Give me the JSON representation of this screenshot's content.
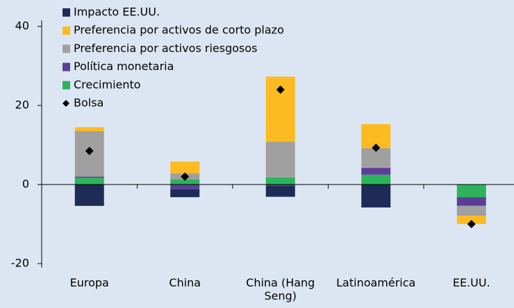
{
  "chart_data": {
    "type": "stacked-bar",
    "categories": [
      "Europa",
      "China",
      "China (Hang Seng)",
      "Latinoamérica",
      "EE.UU."
    ],
    "series": [
      {
        "name": "Impacto EE.UU.",
        "color": "#1f2b57",
        "values": [
          -5.4,
          -2,
          -2.8,
          -5.8,
          0
        ]
      },
      {
        "name": "Preferencia por activos de corto plazo",
        "color": "#fdbb22",
        "values": [
          1,
          3,
          16.5,
          6.1,
          -2.1
        ]
      },
      {
        "name": "Preferencia por activos riesgosos",
        "color": "#a0a0a0",
        "values": [
          11.5,
          1.5,
          9,
          5,
          -2.5
        ]
      },
      {
        "name": "Política monetaria",
        "color": "#5b3d99",
        "values": [
          0.3,
          -1.2,
          -0.3,
          1.7,
          -2.2
        ]
      },
      {
        "name": "Crecimiento",
        "color": "#2bb45a",
        "values": [
          1.7,
          1.3,
          1.8,
          2.5,
          -3.2
        ]
      },
      {
        "name": "Bolsa",
        "color": "#000000",
        "marker": "diamond",
        "values": [
          8.5,
          2,
          24,
          9.3,
          -10
        ]
      }
    ],
    "ylim": [
      -21,
      41.5
    ],
    "yticks": [
      -20,
      0,
      20,
      40
    ]
  }
}
